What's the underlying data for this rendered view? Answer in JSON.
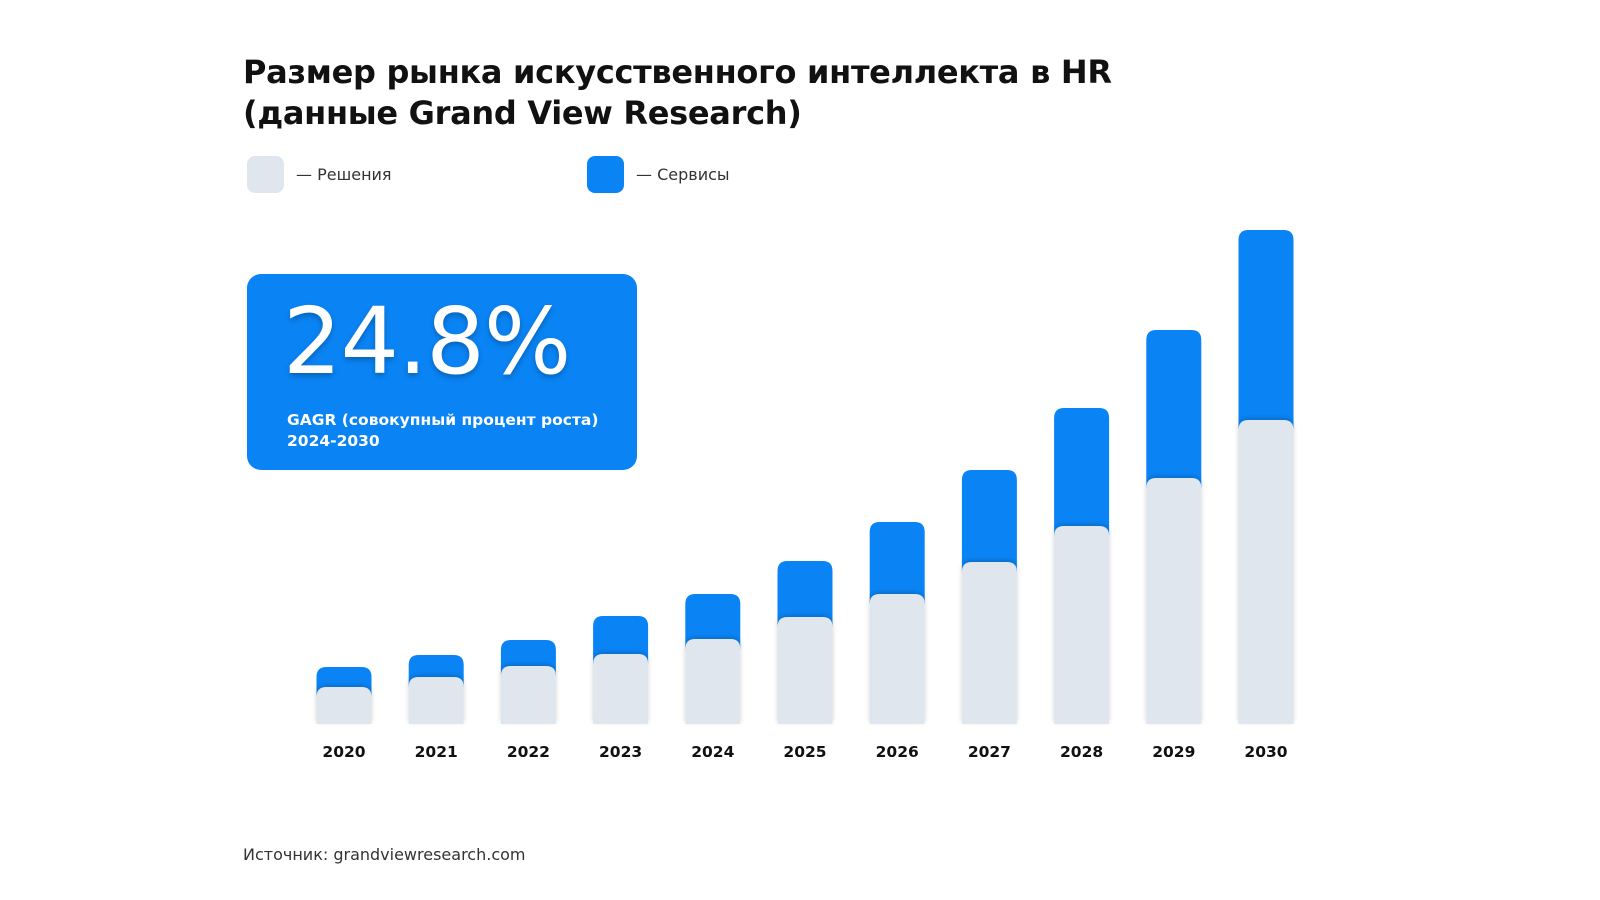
{
  "title_lines": [
    "Размер рынка искусственного интеллекта в HR",
    "(данные Grand View Research)"
  ],
  "legend": [
    {
      "label": "— Решения",
      "color": "#dfe6ee"
    },
    {
      "label": "— Сервисы",
      "color": "#0a84f5"
    }
  ],
  "kpi": {
    "value": "24.8%",
    "caption_lines": [
      "GAGR (совокупный процент роста)",
      "2024-2030"
    ]
  },
  "source": "Источник: grandviewresearch.com",
  "colors": {
    "solutions": "#dfe6ee",
    "services": "#0a84f5",
    "card": "#0a84f5"
  },
  "chart_data": {
    "type": "bar",
    "stacked": true,
    "categories": [
      "2020",
      "2021",
      "2022",
      "2023",
      "2024",
      "2025",
      "2026",
      "2027",
      "2028",
      "2029",
      "2030"
    ],
    "series": [
      {
        "name": "Решения",
        "values": [
          37,
          47,
          58,
          70,
          85,
          107,
          130,
          162,
          198,
          246,
          304
        ]
      },
      {
        "name": "Сервисы",
        "values": [
          20,
          22,
          26,
          38,
          45,
          56,
          72,
          92,
          118,
          148,
          190
        ]
      }
    ],
    "ylim": [
      0,
      500
    ],
    "grid": false,
    "legend_position": "top-left"
  }
}
